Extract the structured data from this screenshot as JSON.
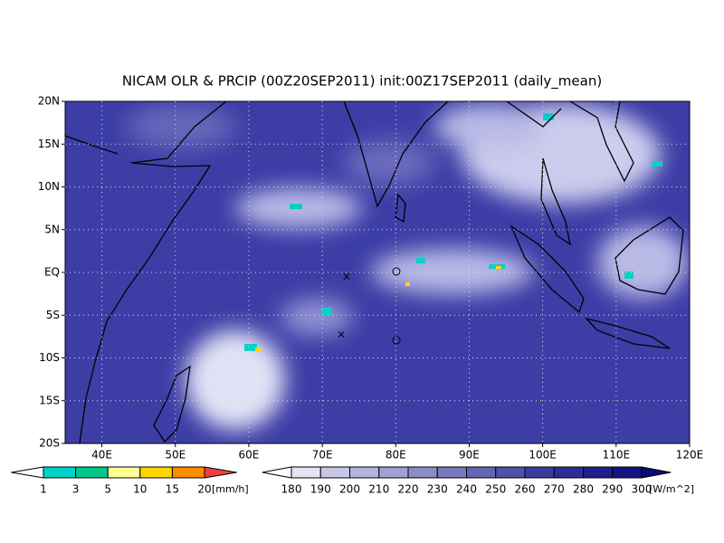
{
  "title": "NICAM OLR & PRCIP (00Z20SEP2011) init:00Z17SEP2011 (daily_mean)",
  "lat_labels": [
    "20N",
    "15N",
    "10N",
    "5N",
    "EQ",
    "5S",
    "10S",
    "15S",
    "20S"
  ],
  "lon_labels": [
    "40E",
    "50E",
    "60E",
    "70E",
    "80E",
    "90E",
    "100E",
    "110E",
    "120E"
  ],
  "precip_colorbar": {
    "levels": [
      "1",
      "3",
      "5",
      "10",
      "15",
      "20"
    ],
    "unit": "[mm/h]",
    "colors": [
      "#ffffff",
      "#00d2c8",
      "#00c88c",
      "#ffff96",
      "#ffd700",
      "#ff8c00",
      "#f04040"
    ]
  },
  "olr_colorbar": {
    "levels": [
      "180",
      "190",
      "200",
      "210",
      "220",
      "230",
      "240",
      "250",
      "260",
      "270",
      "280",
      "290",
      "300"
    ],
    "unit": "[W/m^2]",
    "colors": [
      "#ffffff",
      "#e4e4f2",
      "#c8c8e6",
      "#b4b4dc",
      "#a0a0d2",
      "#8c8cc8",
      "#7878be",
      "#6464b4",
      "#5050aa",
      "#3c3ca0",
      "#2d2d96",
      "#1e1e8c",
      "#141482",
      "#0a0a78"
    ]
  }
}
